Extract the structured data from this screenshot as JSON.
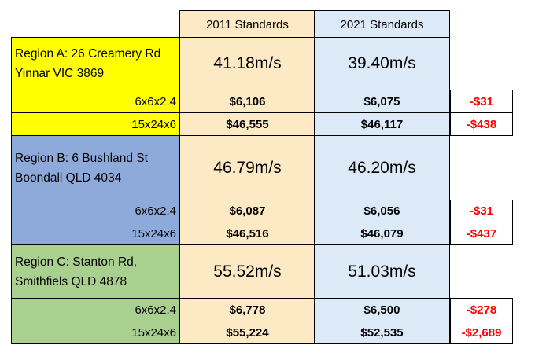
{
  "headers": {
    "col_2011": "2011 Standards",
    "col_2021": "2021 Standards"
  },
  "regions": [
    {
      "name_line1": "Region A:  26 Creamery Rd",
      "name_line2": "Yinnar VIC 3869",
      "speed_2011": "41.18m/s",
      "speed_2021": "39.40m/s",
      "color": "#ffff00",
      "rows": [
        {
          "size": "6x6x2.4",
          "price_2011": "$6,106",
          "price_2021": "$6,075",
          "diff": "-$31"
        },
        {
          "size": "15x24x6",
          "price_2011": "$46,555",
          "price_2021": "$46,117",
          "diff": "-$438"
        }
      ]
    },
    {
      "name_line1": "Region B: 6 Bushland St",
      "name_line2": "Boondall QLD 4034",
      "speed_2011": "46.79m/s",
      "speed_2021": "46.20m/s",
      "color": "#8eaadb",
      "rows": [
        {
          "size": "6x6x2.4",
          "price_2011": "$6,087",
          "price_2021": "$6,056",
          "diff": "-$31"
        },
        {
          "size": "15x24x6",
          "price_2011": "$46,516",
          "price_2021": "$46,079",
          "diff": "-$437"
        }
      ]
    },
    {
      "name_line1": "Region C: Stanton Rd,",
      "name_line2": "Smithfiels QLD 4878",
      "speed_2011": "55.52m/s",
      "speed_2021": "51.03m/s",
      "color": "#a9d08e",
      "rows": [
        {
          "size": "6x6x2.4",
          "price_2011": "$6,778",
          "price_2021": "$6,500",
          "diff": "-$278"
        },
        {
          "size": "15x24x6",
          "price_2011": "$55,224",
          "price_2021": "$52,535",
          "diff": "-$2,689"
        }
      ]
    }
  ],
  "colors": {
    "col_2011_bg": "#fde9c4",
    "col_2021_bg": "#dce9f6",
    "negative_text": "#ff0000"
  }
}
